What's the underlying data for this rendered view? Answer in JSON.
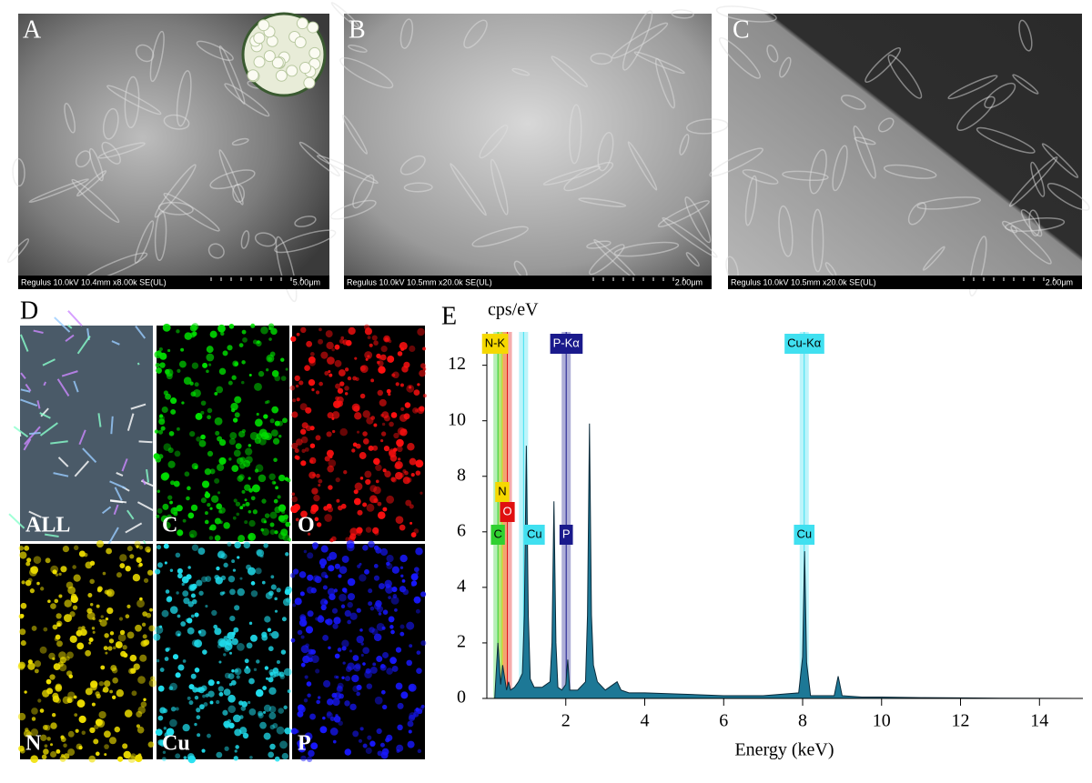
{
  "panels": {
    "sem": [
      {
        "letter": "A",
        "info": "Regulus 10.0kV 10.4mm x8.00k SE(UL)",
        "scale": "5.00μm"
      },
      {
        "letter": "B",
        "info": "Regulus 10.0kV 10.5mm x20.0k SE(UL)",
        "scale": "2.00μm"
      },
      {
        "letter": "C",
        "info": "Regulus 10.0kV 10.5mm x20.0k SE(UL)",
        "scale": "2.00μm"
      }
    ],
    "mapping": {
      "letter": "D",
      "maps": [
        {
          "label": "ALL",
          "color": "#7fa0c8"
        },
        {
          "label": "C",
          "color": "#00e000"
        },
        {
          "label": "O",
          "color": "#ff1010"
        },
        {
          "label": "N",
          "color": "#f0e000"
        },
        {
          "label": "Cu",
          "color": "#20e0f0"
        },
        {
          "label": "P",
          "color": "#1818ff"
        }
      ]
    }
  },
  "chart_data": {
    "type": "area",
    "letter": "E",
    "y_label": "cps/eV",
    "x_label": "Energy (keV)",
    "color": "#1d7896",
    "x": [
      0.2,
      0.28,
      0.35,
      0.4,
      0.5,
      0.55,
      0.6,
      0.7,
      0.8,
      0.9,
      0.95,
      1.0,
      1.05,
      1.1,
      1.2,
      1.4,
      1.6,
      1.65,
      1.7,
      1.75,
      1.8,
      1.9,
      2.0,
      2.05,
      2.1,
      2.3,
      2.5,
      2.55,
      2.6,
      2.65,
      2.7,
      2.8,
      3.0,
      3.3,
      3.4,
      3.6,
      4.0,
      5.0,
      6.0,
      7.0,
      7.9,
      8.0,
      8.05,
      8.1,
      8.2,
      8.8,
      8.9,
      9.0,
      9.5,
      10,
      11,
      12,
      13,
      14.9
    ],
    "values": [
      0,
      2,
      0.5,
      1.2,
      0.3,
      0.6,
      0.3,
      0.4,
      0.6,
      0.9,
      3,
      9.1,
      3,
      0.7,
      0.4,
      0.4,
      0.6,
      2,
      7.1,
      2,
      0.4,
      0.3,
      0.5,
      1.4,
      0.3,
      0.3,
      0.6,
      3,
      9.9,
      3,
      1.2,
      0.6,
      0.3,
      0.6,
      0.3,
      0.2,
      0.2,
      0.15,
      0.1,
      0.1,
      0.2,
      1.5,
      5.3,
      1.3,
      0.1,
      0.1,
      0.8,
      0.1,
      0.05,
      0.05,
      0.03,
      0.02,
      0.01,
      0
    ],
    "xlim": [
      0,
      15.1
    ],
    "ylim": [
      0,
      13.2
    ],
    "xticks": [
      2,
      4,
      6,
      8,
      10,
      12,
      14
    ],
    "yticks": [
      0,
      2,
      4,
      6,
      8,
      10,
      12
    ],
    "peak_labels": [
      {
        "text": "N-K",
        "energy": 0.39,
        "color": "#f5d800"
      },
      {
        "text": "P-Kα",
        "energy": 2.01,
        "color": "#1a1a8c"
      },
      {
        "text": "Cu-Kα",
        "energy": 8.04,
        "color": "#40e0f0"
      },
      {
        "text": "N",
        "energy": 0.39,
        "color": "#f5d800"
      },
      {
        "text": "O",
        "energy": 0.52,
        "color": "#e01010"
      },
      {
        "text": "C",
        "energy": 0.28,
        "color": "#30d030"
      },
      {
        "text": "Cu",
        "energy": 0.93,
        "color": "#40e0f0"
      },
      {
        "text": "P",
        "energy": 2.01,
        "color": "#1a1a8c"
      },
      {
        "text": "Cu",
        "energy": 8.04,
        "color": "#40e0f0"
      }
    ]
  }
}
